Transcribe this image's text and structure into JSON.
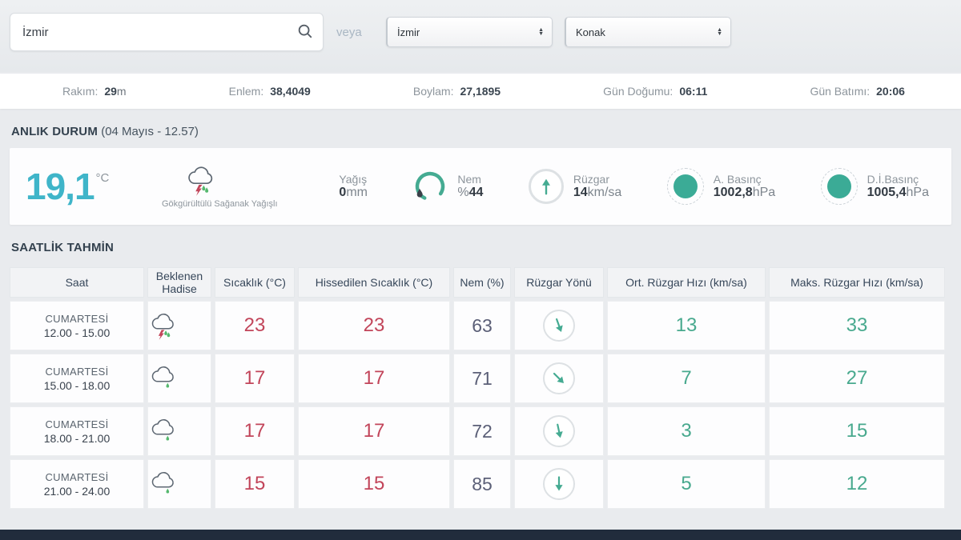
{
  "search": {
    "value": "İzmir",
    "or_label": "veya"
  },
  "selects": {
    "province": "İzmir",
    "district": "Konak"
  },
  "info_bar": [
    {
      "label": "Rakım:",
      "value": "29",
      "unit": "m"
    },
    {
      "label": "Enlem:",
      "value": "38,4049",
      "unit": ""
    },
    {
      "label": "Boylam:",
      "value": "27,1895",
      "unit": ""
    },
    {
      "label": "Gün Doğumu:",
      "value": "06:11",
      "unit": ""
    },
    {
      "label": "Gün Batımı:",
      "value": "20:06",
      "unit": ""
    }
  ],
  "current": {
    "section_title": "ANLIK DURUM",
    "section_subtitle": "(04 Mayıs - 12.57)",
    "temperature": "19,1",
    "temperature_unit": "°C",
    "condition": "Gökgürültülü Sağanak Yağışlı",
    "condition_icon": "thunderstorm",
    "metrics": {
      "precipitation": {
        "label": "Yağış",
        "prefix": "",
        "value": "0",
        "unit": "mm"
      },
      "humidity": {
        "label": "Nem",
        "prefix": "%",
        "value": "44",
        "unit": ""
      },
      "wind": {
        "label": "Rüzgar",
        "prefix": "",
        "value": "14",
        "unit": "km/sa"
      },
      "pressure_act": {
        "label": "A. Basınç",
        "prefix": "",
        "value": "1002,8",
        "unit": "hPa"
      },
      "pressure_sea": {
        "label": "D.İ.Basınç",
        "prefix": "",
        "value": "1005,4",
        "unit": "hPa"
      }
    }
  },
  "hourly": {
    "section_title": "SAATLİK TAHMİN",
    "columns": [
      "Saat",
      "Beklenen Hadise",
      "Sıcaklık (°C)",
      "Hissedilen Sıcaklık (°C)",
      "Nem (%)",
      "Rüzgar Yönü",
      "Ort. Rüzgar Hızı (km/sa)",
      "Maks. Rüzgar Hızı (km/sa)"
    ],
    "rows": [
      {
        "day": "CUMARTESİ",
        "time": "12.00 - 15.00",
        "icon": "thunderstorm",
        "temp": "23",
        "feels": "23",
        "humidity": "63",
        "wind_dir_deg": 160,
        "avg_wind": "13",
        "max_wind": "33"
      },
      {
        "day": "CUMARTESİ",
        "time": "15.00 - 18.00",
        "icon": "cloud-rain",
        "temp": "17",
        "feels": "17",
        "humidity": "71",
        "wind_dir_deg": 135,
        "avg_wind": "7",
        "max_wind": "27"
      },
      {
        "day": "CUMARTESİ",
        "time": "18.00 - 21.00",
        "icon": "cloud-rain",
        "temp": "17",
        "feels": "17",
        "humidity": "72",
        "wind_dir_deg": 168,
        "avg_wind": "3",
        "max_wind": "15"
      },
      {
        "day": "CUMARTESİ",
        "time": "21.00 - 24.00",
        "icon": "cloud-rain",
        "temp": "15",
        "feels": "15",
        "humidity": "85",
        "wind_dir_deg": 180,
        "avg_wind": "5",
        "max_wind": "12"
      }
    ]
  },
  "colors": {
    "accent_cyan": "#3fb5c9",
    "accent_teal": "#45ab92",
    "temp_red": "#c2455a",
    "rain_green": "#55b86e",
    "bolt_red": "#c2455a"
  }
}
